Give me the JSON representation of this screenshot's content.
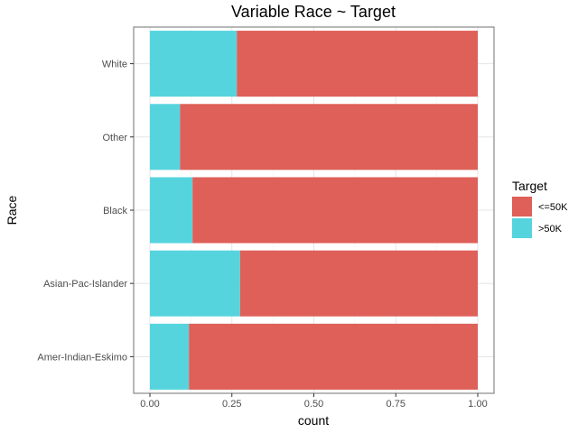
{
  "chart_data": {
    "type": "bar",
    "orientation": "horizontal",
    "stacked": true,
    "title": "Variable Race ~ Target",
    "xlabel": "count",
    "ylabel": "Race",
    "categories": [
      "Amer-Indian-Eskimo",
      "Asian-Pac-Islander",
      "Black",
      "Other",
      "White"
    ],
    "xlim": [
      0,
      1
    ],
    "xticks": [
      "0.00",
      "0.25",
      "0.50",
      "0.75",
      "1.00"
    ],
    "legend": {
      "title": "Target",
      "position": "right"
    },
    "grid": true,
    "series": [
      {
        "name": ">50K",
        "color": "#56D4DD",
        "values": [
          0.119,
          0.275,
          0.13,
          0.092,
          0.265
        ]
      },
      {
        "name": "<=50K",
        "color": "#DE6058",
        "values": [
          0.881,
          0.725,
          0.87,
          0.908,
          0.735
        ]
      }
    ]
  }
}
